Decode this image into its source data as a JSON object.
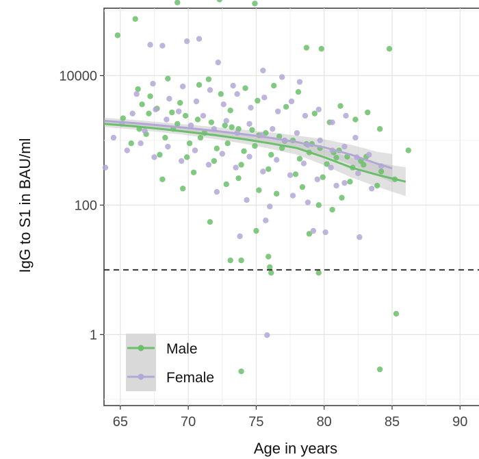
{
  "chart_data": {
    "type": "scatter",
    "title": "",
    "xlabel": "Age in years",
    "ylabel": "IgG to S1 in BAU/ml",
    "xlim": [
      63.8,
      92
    ],
    "ylim": [
      0.08,
      110000
    ],
    "y_scale": "log10",
    "x_ticks": [
      65,
      70,
      75,
      80,
      85,
      90
    ],
    "x_tick_labels": [
      "65",
      "70",
      "75",
      "80",
      "85",
      "90"
    ],
    "y_ticks": [
      1,
      100,
      10000
    ],
    "y_tick_labels": [
      "1",
      "100",
      "10000"
    ],
    "grid": true,
    "threshold_line": {
      "y": 10,
      "style": "dashed"
    },
    "legend": {
      "position": "bottom-left",
      "entries": [
        "Male",
        "Female"
      ]
    },
    "series": [
      {
        "name": "Male",
        "color": "#6bbf6b",
        "trend": {
          "x": [
            63.8,
            66,
            68,
            70,
            72,
            74,
            76,
            78,
            80,
            82,
            84,
            86
          ],
          "y": [
            1800,
            1650,
            1500,
            1350,
            1200,
            1050,
            900,
            760,
            550,
            380,
            290,
            230
          ]
        },
        "points": [
          [
            64.8,
            42000
          ],
          [
            66.1,
            75000
          ],
          [
            69.2,
            135000
          ],
          [
            72.3,
            150000
          ],
          [
            74.9,
            130000
          ],
          [
            79.8,
            26000
          ],
          [
            78.7,
            27000
          ],
          [
            84.8,
            26000
          ],
          [
            66.3,
            6200
          ],
          [
            67.2,
            4800
          ],
          [
            68.5,
            9000
          ],
          [
            69.4,
            3800
          ],
          [
            70.8,
            7200
          ],
          [
            71.5,
            8800
          ],
          [
            72.4,
            5200
          ],
          [
            73.1,
            2900
          ],
          [
            74.2,
            6400
          ],
          [
            75.1,
            4100
          ],
          [
            76.3,
            7000
          ],
          [
            77.2,
            3300
          ],
          [
            78.1,
            5600
          ],
          [
            79.3,
            2600
          ],
          [
            80.4,
            1900
          ],
          [
            81.2,
            3400
          ],
          [
            82.3,
            2100
          ],
          [
            83.2,
            2700
          ],
          [
            84.1,
            1500
          ],
          [
            65.2,
            2200
          ],
          [
            66.4,
            1500
          ],
          [
            67.1,
            2600
          ],
          [
            68.3,
            1100
          ],
          [
            69.2,
            1800
          ],
          [
            70.1,
            900
          ],
          [
            71.2,
            1300
          ],
          [
            72.1,
            750
          ],
          [
            73.2,
            1600
          ],
          [
            74.1,
            680
          ],
          [
            75.2,
            1200
          ],
          [
            76.1,
            600
          ],
          [
            77.1,
            980
          ],
          [
            78.2,
            520
          ],
          [
            79.1,
            880
          ],
          [
            80.2,
            430
          ],
          [
            81.1,
            700
          ],
          [
            82.1,
            380
          ],
          [
            83.1,
            560
          ],
          [
            84.2,
            330
          ],
          [
            85.2,
            250
          ],
          [
            86.2,
            700
          ],
          [
            65.8,
            900
          ],
          [
            66.9,
            1250
          ],
          [
            67.9,
            600
          ],
          [
            68.9,
            1500
          ],
          [
            69.9,
            550
          ],
          [
            70.9,
            1100
          ],
          [
            71.9,
            480
          ],
          [
            72.9,
            900
          ],
          [
            73.9,
            420
          ],
          [
            74.9,
            820
          ],
          [
            75.9,
            360
          ],
          [
            76.9,
            760
          ],
          [
            77.9,
            300
          ],
          [
            78.9,
            650
          ],
          [
            79.9,
            270
          ],
          [
            80.9,
            540
          ],
          [
            81.9,
            230
          ],
          [
            82.9,
            420
          ],
          [
            83.9,
            200
          ],
          [
            66.6,
            3600
          ],
          [
            67.7,
            3100
          ],
          [
            68.8,
            2700
          ],
          [
            69.8,
            2400
          ],
          [
            70.7,
            2100
          ],
          [
            71.7,
            1900
          ],
          [
            72.7,
            1700
          ],
          [
            73.7,
            1500
          ],
          [
            74.7,
            1450
          ],
          [
            75.7,
            1300
          ],
          [
            76.7,
            1150
          ],
          [
            77.7,
            1000
          ],
          [
            78.7,
            880
          ],
          [
            79.7,
            760
          ],
          [
            80.7,
            650
          ],
          [
            81.7,
            560
          ],
          [
            82.7,
            480
          ],
          [
            68.1,
            250
          ],
          [
            70.4,
            320
          ],
          [
            72.8,
            210
          ],
          [
            75.2,
            170
          ],
          [
            76.5,
            150
          ],
          [
            78.4,
            190
          ],
          [
            79.6,
            100
          ],
          [
            80.6,
            85
          ],
          [
            81.3,
            130
          ],
          [
            73.7,
            260
          ],
          [
            69.6,
            180
          ],
          [
            71.6,
            55
          ],
          [
            75.0,
            40
          ],
          [
            73.1,
            14
          ],
          [
            73.9,
            14
          ],
          [
            76.0,
            11
          ],
          [
            75.9,
            16
          ],
          [
            76.1,
            9
          ],
          [
            79.6,
            9
          ],
          [
            78.9,
            36
          ],
          [
            85.3,
            2.1
          ],
          [
            84.1,
            0.29
          ],
          [
            73.9,
            0.27
          ]
        ]
      },
      {
        "name": "Female",
        "color": "#b3a7d6",
        "trend": {
          "x": [
            63.8,
            66,
            68,
            70,
            72,
            74,
            76,
            78,
            80,
            82,
            84,
            85
          ],
          "y": [
            2000,
            1850,
            1700,
            1550,
            1400,
            1250,
            1100,
            940,
            780,
            600,
            430,
            370
          ]
        },
        "points": [
          [
            63.9,
            380
          ],
          [
            64.5,
            1100
          ],
          [
            65.1,
            1800
          ],
          [
            65.9,
            2600
          ],
          [
            66.8,
            1400
          ],
          [
            67.6,
            3000
          ],
          [
            68.4,
            2100
          ],
          [
            69.3,
            2800
          ],
          [
            70.2,
            1700
          ],
          [
            71.1,
            2400
          ],
          [
            71.9,
            1500
          ],
          [
            72.8,
            2000
          ],
          [
            73.6,
            1300
          ],
          [
            74.5,
            1800
          ],
          [
            75.4,
            1200
          ],
          [
            76.2,
            1500
          ],
          [
            77.1,
            1000
          ],
          [
            78.0,
            1300
          ],
          [
            78.8,
            850
          ],
          [
            79.7,
            1000
          ],
          [
            80.6,
            700
          ],
          [
            81.5,
            800
          ],
          [
            82.4,
            550
          ],
          [
            83.3,
            600
          ],
          [
            84.2,
            400
          ],
          [
            67.2,
            30000
          ],
          [
            68.1,
            29000
          ],
          [
            69.9,
            34000
          ],
          [
            70.8,
            37000
          ],
          [
            72.2,
            16000
          ],
          [
            73.3,
            7000
          ],
          [
            75.5,
            12000
          ],
          [
            76.9,
            9500
          ],
          [
            78.2,
            8000
          ],
          [
            82.3,
            1100
          ],
          [
            66.2,
            5200
          ],
          [
            67.4,
            7500
          ],
          [
            68.6,
            4400
          ],
          [
            69.6,
            6800
          ],
          [
            70.6,
            4000
          ],
          [
            71.6,
            6000
          ],
          [
            72.6,
            3600
          ],
          [
            73.6,
            5200
          ],
          [
            74.6,
            3200
          ],
          [
            75.6,
            4600
          ],
          [
            76.6,
            2800
          ],
          [
            77.6,
            4000
          ],
          [
            78.6,
            2400
          ],
          [
            79.6,
            3000
          ],
          [
            80.6,
            1900
          ],
          [
            81.6,
            2400
          ],
          [
            65.5,
            700
          ],
          [
            66.5,
            900
          ],
          [
            67.5,
            550
          ],
          [
            68.5,
            800
          ],
          [
            69.5,
            480
          ],
          [
            70.5,
            700
          ],
          [
            71.5,
            420
          ],
          [
            72.5,
            620
          ],
          [
            73.5,
            380
          ],
          [
            74.5,
            560
          ],
          [
            75.5,
            330
          ],
          [
            76.5,
            500
          ],
          [
            77.5,
            290
          ],
          [
            78.5,
            440
          ],
          [
            79.5,
            250
          ],
          [
            80.5,
            380
          ],
          [
            81.5,
            220
          ],
          [
            82.5,
            310
          ],
          [
            83.5,
            180
          ],
          [
            72.1,
            160
          ],
          [
            74.3,
            120
          ],
          [
            76.0,
            95
          ],
          [
            77.7,
            140
          ],
          [
            79.2,
            40
          ],
          [
            80.1,
            38
          ],
          [
            82.6,
            32
          ],
          [
            73.8,
            33
          ],
          [
            75.7,
            58
          ],
          [
            78.8,
            110
          ],
          [
            80.9,
            200
          ],
          [
            75.8,
            0.98
          ]
        ]
      }
    ]
  }
}
